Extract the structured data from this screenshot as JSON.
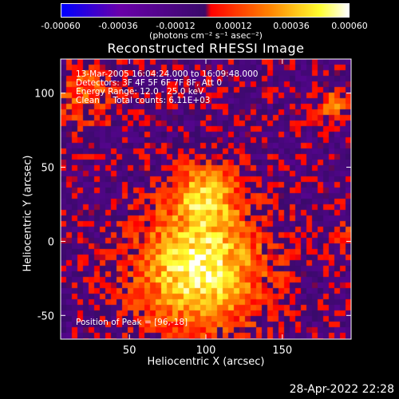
{
  "colorbar": {
    "ticks": [
      "-0.00060",
      "-0.00036",
      "-0.00012",
      "0.00012",
      "0.00036",
      "0.00060"
    ],
    "units": "(photons cm⁻² s⁻¹ asec⁻²)",
    "colors": [
      "#0000ff",
      "#6a00aa",
      "#3a0a6a",
      "#ff0000",
      "#ff8000",
      "#ffff30",
      "#ffffff"
    ]
  },
  "chart_data": {
    "type": "heatmap",
    "title": "Reconstructed RHESSI Image",
    "xlabel": "Heliocentric X (arcsec)",
    "ylabel": "Heliocentric Y (arcsec)",
    "xlim": [
      5,
      195
    ],
    "ylim": [
      -66,
      123
    ],
    "xticks": [
      50,
      100,
      150
    ],
    "yticks": [
      -50,
      0,
      50,
      100
    ],
    "annotations": [
      "13-Mar-2005 16:04:24.000 to 16:09:48.000",
      "Detectors: 3F 4F 5F 6F 7F 8F, Att 0",
      "Energy Range: 12.0 - 25.0 keV",
      "Clean     Total counts: 6.11E+03"
    ],
    "peak_label": "Position of Peak = [96,-18]",
    "peak": [
      96,
      -18
    ],
    "sources": [
      {
        "x": 96,
        "y": -18,
        "sigma": 28,
        "amp": 0.0006
      },
      {
        "x": 100,
        "y": 32,
        "sigma": 14,
        "amp": 0.0004
      },
      {
        "x": 20,
        "y": 100,
        "sigma": 14,
        "amp": 0.00025
      },
      {
        "x": 183,
        "y": 92,
        "sigma": 6,
        "amp": 0.00035
      },
      {
        "x": 190,
        "y": 5,
        "sigma": 6,
        "amp": 0.0002
      }
    ]
  },
  "footer": {
    "date": "28-Apr-2022 22:28"
  }
}
